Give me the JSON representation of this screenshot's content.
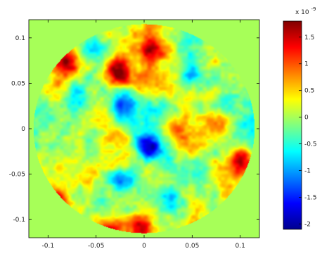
{
  "chart_data": {
    "type": "heatmap",
    "title": "",
    "xlabel": "",
    "ylabel": "",
    "xlim": [
      -0.12,
      0.12
    ],
    "ylim": [
      -0.12,
      0.12
    ],
    "x_ticks": [
      -0.1,
      -0.05,
      0,
      0.05,
      0.1
    ],
    "x_tick_labels": [
      "-0.1",
      "-0.05",
      "0",
      "0.05",
      "0.1"
    ],
    "y_ticks": [
      0.1,
      0.05,
      0,
      -0.05,
      -0.1
    ],
    "y_tick_labels": [
      "0.1",
      "0.05",
      "0",
      "-0.05",
      "-0.1"
    ],
    "aperture": {
      "shape": "circle",
      "center": [
        0,
        0
      ],
      "radius": 0.115
    },
    "background_value": 0,
    "colorbar": {
      "range": [
        -2.1,
        1.8
      ],
      "multiplier_label": "x 10",
      "multiplier_exponent": "-9",
      "ticks": [
        1.5,
        1,
        0.5,
        0,
        -0.5,
        -1,
        -1.5,
        -2
      ],
      "tick_labels": [
        "1.5",
        "1",
        "0.5",
        "0",
        "-0.5",
        "-1",
        "-1.5",
        "-2"
      ],
      "colormap": "jet"
    },
    "features": [
      {
        "x": 0.0,
        "y": -0.02,
        "value": -1.9
      },
      {
        "x": -0.03,
        "y": 0.065,
        "value": 1.6
      },
      {
        "x": 0.005,
        "y": 0.085,
        "value": 1.2
      },
      {
        "x": -0.08,
        "y": 0.075,
        "value": 1.3
      },
      {
        "x": -0.095,
        "y": -0.08,
        "value": 1.7
      },
      {
        "x": -0.04,
        "y": -0.11,
        "value": 1.5
      },
      {
        "x": 0.1,
        "y": -0.035,
        "value": 1.6
      },
      {
        "x": 0.03,
        "y": 0.0,
        "value": 1.3
      },
      {
        "x": 0.075,
        "y": 0.005,
        "value": 1.2
      },
      {
        "x": 0.0,
        "y": -0.11,
        "value": 1.4
      },
      {
        "x": -0.02,
        "y": 0.03,
        "value": -1.2
      },
      {
        "x": 0.05,
        "y": 0.06,
        "value": -1.1
      },
      {
        "x": -0.02,
        "y": -0.055,
        "value": -1.3
      },
      {
        "x": 0.03,
        "y": -0.08,
        "value": -1.0
      },
      {
        "x": -0.07,
        "y": 0.04,
        "value": -0.9
      }
    ]
  }
}
